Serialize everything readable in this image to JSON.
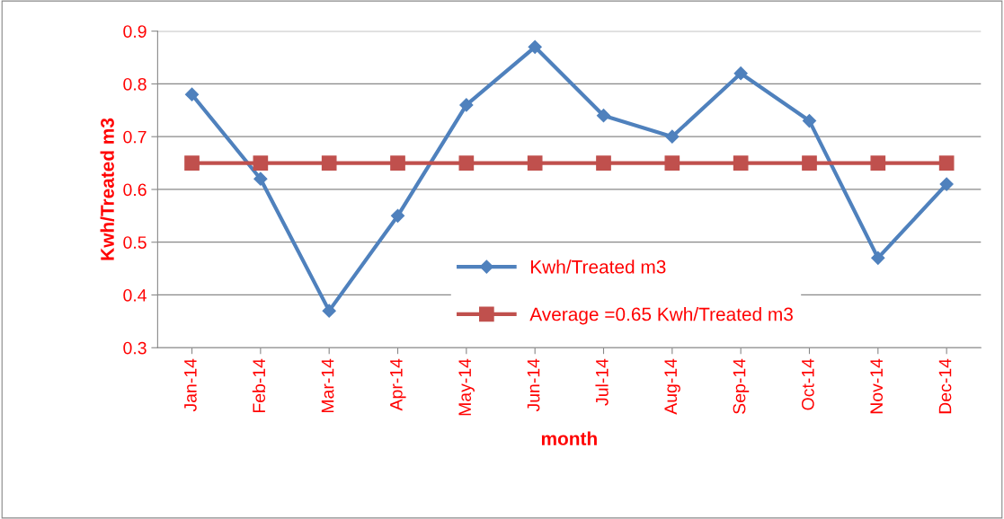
{
  "chart_data": {
    "type": "line",
    "xlabel": "month",
    "ylabel": "Kwh/Treated m3",
    "categories": [
      "Jan-14",
      "Feb-14",
      "Mar-14",
      "Apr-14",
      "May-14",
      "Jun-14",
      "Jul-14",
      "Aug-14",
      "Sep-14",
      "Oct-14",
      "Nov-14",
      "Dec-14"
    ],
    "series": [
      {
        "name": "Kwh/Treated m3",
        "color": "#4f81bd",
        "marker": "diamond",
        "values": [
          0.78,
          0.62,
          0.37,
          0.55,
          0.76,
          0.87,
          0.74,
          0.7,
          0.82,
          0.73,
          0.47,
          0.61
        ]
      },
      {
        "name": "Average =0.65 Kwh/Treated m3",
        "color": "#c0504d",
        "marker": "square",
        "values": [
          0.65,
          0.65,
          0.65,
          0.65,
          0.65,
          0.65,
          0.65,
          0.65,
          0.65,
          0.65,
          0.65,
          0.65
        ]
      }
    ],
    "ylim": [
      0.3,
      0.9
    ],
    "yticks": [
      0.3,
      0.4,
      0.5,
      0.6,
      0.7,
      0.8,
      0.9
    ],
    "grid": "y",
    "legend": "right"
  }
}
